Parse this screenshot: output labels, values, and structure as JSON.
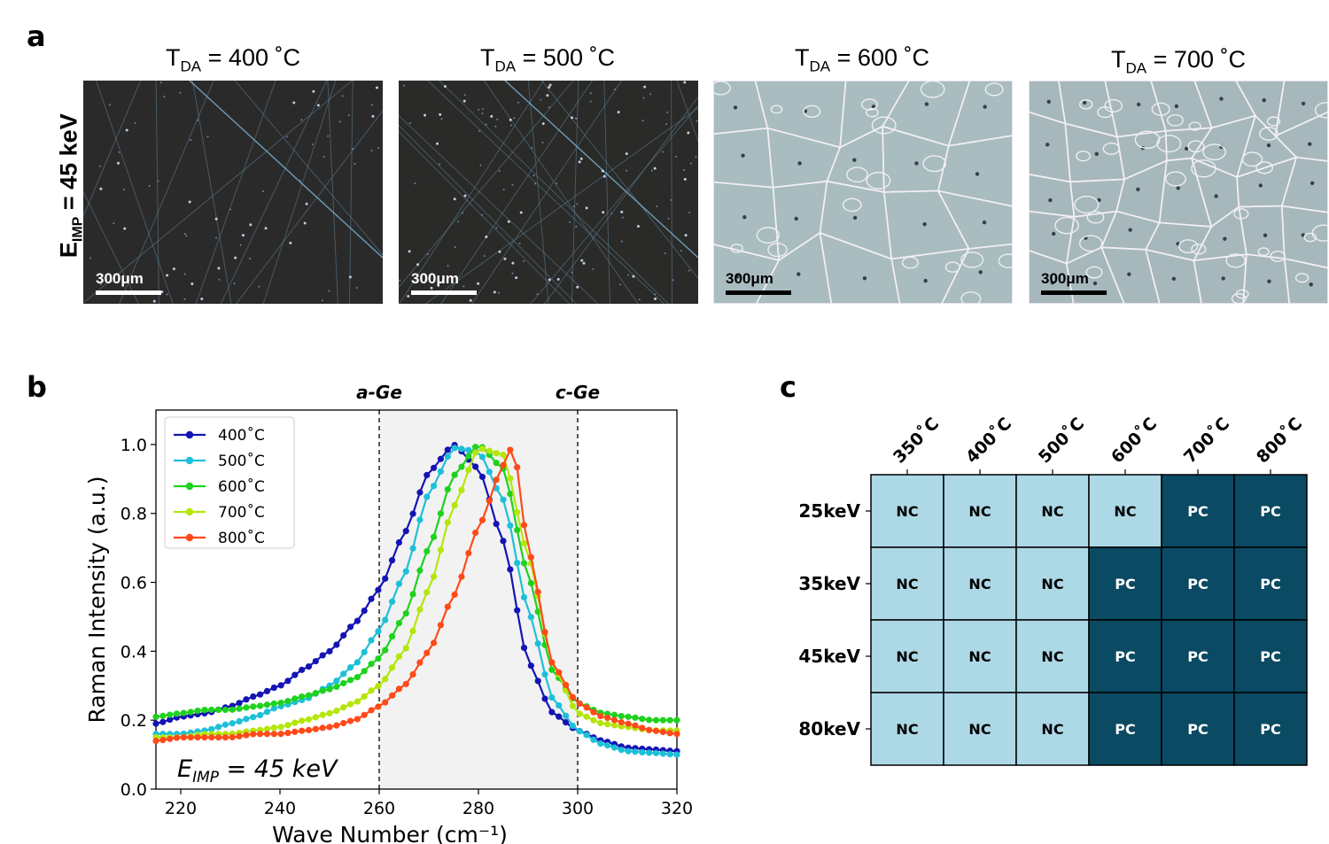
{
  "panel_a": {
    "letter": "a",
    "ylabel_main": "E",
    "ylabel_sub": "IMP",
    "ylabel_rest": " = 45 keV",
    "images": [
      {
        "t_main": "T",
        "t_sub": "DA",
        "t_rest": " = 400 ˚C",
        "scale_bar": "300μm"
      },
      {
        "t_main": "T",
        "t_sub": "DA",
        "t_rest": " = 500 ˚C",
        "scale_bar": "300μm"
      },
      {
        "t_main": "T",
        "t_sub": "DA",
        "t_rest": " = 600 ˚C",
        "scale_bar": "300μm"
      },
      {
        "t_main": "T",
        "t_sub": "DA",
        "t_rest": " = 700 ˚C",
        "scale_bar": "300μm"
      }
    ]
  },
  "panel_b": {
    "letter": "b",
    "annotation_main": "E",
    "annotation_sub": "IMP",
    "annotation_rest": " = 45 keV",
    "marker_a": "a-Ge",
    "marker_c": "c-Ge"
  },
  "panel_c": {
    "letter": "c",
    "columns": [
      "350˚C",
      "400˚C",
      "500˚C",
      "600˚C",
      "700˚C",
      "800˚C"
    ],
    "rows": [
      {
        "label": "25keV",
        "cells": [
          "NC",
          "NC",
          "NC",
          "NC",
          "PC",
          "PC"
        ]
      },
      {
        "label": "35keV",
        "cells": [
          "NC",
          "NC",
          "NC",
          "PC",
          "PC",
          "PC"
        ]
      },
      {
        "label": "45keV",
        "cells": [
          "NC",
          "NC",
          "NC",
          "PC",
          "PC",
          "PC"
        ]
      },
      {
        "label": "80keV",
        "cells": [
          "NC",
          "NC",
          "NC",
          "PC",
          "PC",
          "PC"
        ]
      }
    ],
    "colors": {
      "NC": "#add8e6",
      "PC": "#0b4a63"
    }
  },
  "chart_data": {
    "type": "line",
    "title": "",
    "xlabel": "Wave Number (cm⁻¹)",
    "ylabel": "Raman Intensity (a.u.)",
    "xlim": [
      215,
      320
    ],
    "ylim": [
      0.0,
      1.1
    ],
    "xticks": [
      220,
      240,
      260,
      280,
      300,
      320
    ],
    "yticks": [
      0.0,
      0.2,
      0.4,
      0.6,
      0.8,
      1.0
    ],
    "shaded_region": [
      260,
      300
    ],
    "vlines": [
      260,
      300
    ],
    "legend_position": "top-left",
    "series": [
      {
        "name": "400˚C",
        "color": "#1414b4",
        "x": [
          215,
          220,
          225,
          230,
          235,
          240,
          245,
          250,
          255,
          260,
          265,
          270,
          275,
          280,
          285,
          290,
          295,
          300,
          305,
          310,
          315,
          320
        ],
        "y": [
          0.19,
          0.21,
          0.22,
          0.24,
          0.27,
          0.3,
          0.35,
          0.4,
          0.48,
          0.58,
          0.74,
          0.92,
          1.0,
          0.93,
          0.72,
          0.37,
          0.22,
          0.17,
          0.14,
          0.12,
          0.115,
          0.11
        ]
      },
      {
        "name": "500˚C",
        "color": "#1ec0d8",
        "x": [
          215,
          220,
          225,
          230,
          235,
          240,
          245,
          250,
          255,
          260,
          265,
          270,
          275,
          280,
          285,
          290,
          295,
          300,
          305,
          310,
          315,
          320
        ],
        "y": [
          0.16,
          0.16,
          0.17,
          0.19,
          0.21,
          0.24,
          0.26,
          0.3,
          0.36,
          0.46,
          0.62,
          0.86,
          0.99,
          0.98,
          0.84,
          0.52,
          0.26,
          0.17,
          0.13,
          0.11,
          0.105,
          0.1
        ]
      },
      {
        "name": "600˚C",
        "color": "#1ed21e",
        "x": [
          215,
          220,
          225,
          230,
          235,
          240,
          245,
          250,
          255,
          260,
          265,
          270,
          275,
          280,
          285,
          290,
          295,
          300,
          305,
          310,
          315,
          320
        ],
        "y": [
          0.21,
          0.22,
          0.23,
          0.23,
          0.24,
          0.25,
          0.27,
          0.29,
          0.32,
          0.38,
          0.5,
          0.7,
          0.91,
          1.0,
          0.93,
          0.62,
          0.34,
          0.25,
          0.22,
          0.21,
          0.2,
          0.2
        ]
      },
      {
        "name": "700˚C",
        "color": "#b4e60a",
        "x": [
          215,
          220,
          225,
          230,
          235,
          240,
          245,
          250,
          255,
          260,
          265,
          270,
          275,
          280,
          285,
          290,
          295,
          300,
          305,
          310,
          315,
          320
        ],
        "y": [
          0.15,
          0.15,
          0.16,
          0.16,
          0.17,
          0.18,
          0.2,
          0.22,
          0.25,
          0.3,
          0.4,
          0.58,
          0.82,
          0.99,
          0.97,
          0.68,
          0.36,
          0.22,
          0.19,
          0.18,
          0.17,
          0.17
        ]
      },
      {
        "name": "800˚C",
        "color": "#ff4a1a",
        "x": [
          215,
          220,
          225,
          230,
          235,
          240,
          245,
          250,
          255,
          260,
          265,
          270,
          275,
          280,
          285,
          287,
          290,
          295,
          300,
          305,
          310,
          315,
          320
        ],
        "y": [
          0.14,
          0.15,
          0.15,
          0.15,
          0.16,
          0.16,
          0.17,
          0.18,
          0.2,
          0.24,
          0.3,
          0.4,
          0.56,
          0.76,
          0.94,
          1.0,
          0.7,
          0.36,
          0.25,
          0.21,
          0.19,
          0.17,
          0.16
        ]
      }
    ]
  }
}
